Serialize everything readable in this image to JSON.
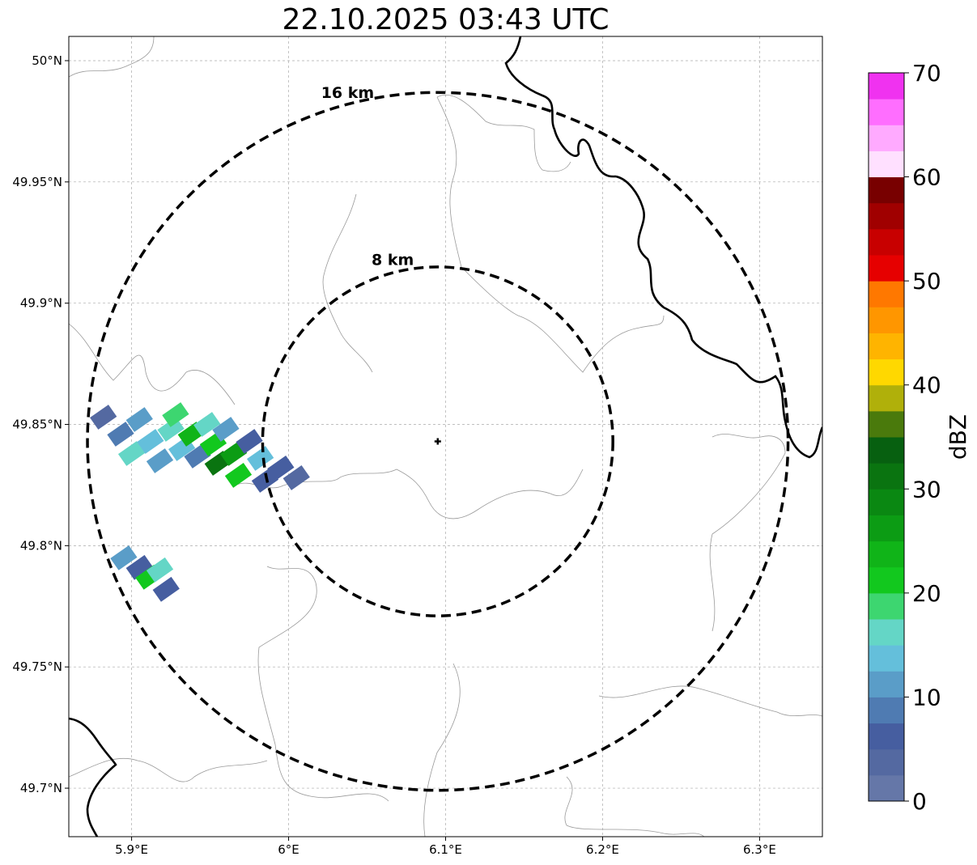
{
  "title": "22.10.2025 03:43 UTC",
  "map": {
    "lon_range": [
      5.86,
      6.34
    ],
    "lat_range": [
      49.68,
      50.01
    ],
    "lon_ticks": [
      5.9,
      6.0,
      6.1,
      6.2,
      6.3
    ],
    "lon_tick_labels": [
      "5.9°E",
      "6°E",
      "6.1°E",
      "6.2°E",
      "6.3°E"
    ],
    "lat_ticks": [
      49.7,
      49.75,
      49.8,
      49.85,
      49.9,
      49.95,
      50.0
    ],
    "lat_tick_labels": [
      "49.7°N",
      "49.75°N",
      "49.8°N",
      "49.85°N",
      "49.9°N",
      "49.95°N",
      "50°N"
    ],
    "gridlines": true,
    "radar_site": {
      "lon": 6.095,
      "lat": 49.843
    },
    "range_rings": [
      {
        "radius_km": 8,
        "label": "8 km"
      },
      {
        "radius_km": 16,
        "label": "16 km"
      }
    ]
  },
  "colorbar": {
    "label": "dBZ",
    "min": 0,
    "max": 70,
    "step": 2.5,
    "tick_values": [
      0,
      10,
      20,
      30,
      40,
      50,
      60,
      70
    ],
    "tick_labels": [
      "0",
      "10",
      "20",
      "30",
      "40",
      "50",
      "60",
      "70"
    ],
    "colors": [
      "#6577a8",
      "#5469a1",
      "#465ea0",
      "#4f7bb2",
      "#5a9dc8",
      "#64bfdb",
      "#64d6c6",
      "#3dd670",
      "#12c81e",
      "#10b418",
      "#0c9c14",
      "#0a8812",
      "#0a7410",
      "#076010",
      "#4a7a0c",
      "#b0b00a",
      "#ffd800",
      "#ffb400",
      "#ff9600",
      "#ff7800",
      "#e60000",
      "#c80000",
      "#a00000",
      "#780000",
      "#ffe0ff",
      "#ffaaff",
      "#ff6eff",
      "#f032f0"
    ]
  },
  "echoes": [
    {
      "lon": 5.882,
      "lat": 49.853,
      "dbz": 4
    },
    {
      "lon": 5.893,
      "lat": 49.846,
      "dbz": 8
    },
    {
      "lon": 5.905,
      "lat": 49.852,
      "dbz": 12
    },
    {
      "lon": 5.9,
      "lat": 49.838,
      "dbz": 16
    },
    {
      "lon": 5.912,
      "lat": 49.843,
      "dbz": 14
    },
    {
      "lon": 5.918,
      "lat": 49.835,
      "dbz": 10
    },
    {
      "lon": 5.925,
      "lat": 49.848,
      "dbz": 17
    },
    {
      "lon": 5.932,
      "lat": 49.84,
      "dbz": 13
    },
    {
      "lon": 5.928,
      "lat": 49.854,
      "dbz": 18
    },
    {
      "lon": 5.938,
      "lat": 49.846,
      "dbz": 24
    },
    {
      "lon": 5.942,
      "lat": 49.837,
      "dbz": 9
    },
    {
      "lon": 5.948,
      "lat": 49.85,
      "dbz": 15
    },
    {
      "lon": 5.952,
      "lat": 49.842,
      "dbz": 22
    },
    {
      "lon": 5.955,
      "lat": 49.834,
      "dbz": 30
    },
    {
      "lon": 5.96,
      "lat": 49.848,
      "dbz": 12
    },
    {
      "lon": 5.965,
      "lat": 49.838,
      "dbz": 27
    },
    {
      "lon": 5.968,
      "lat": 49.829,
      "dbz": 22
    },
    {
      "lon": 5.975,
      "lat": 49.843,
      "dbz": 7
    },
    {
      "lon": 5.982,
      "lat": 49.836,
      "dbz": 13
    },
    {
      "lon": 5.985,
      "lat": 49.827,
      "dbz": 5
    },
    {
      "lon": 5.995,
      "lat": 49.832,
      "dbz": 6
    },
    {
      "lon": 6.005,
      "lat": 49.828,
      "dbz": 4
    },
    {
      "lon": 5.895,
      "lat": 49.795,
      "dbz": 12
    },
    {
      "lon": 5.905,
      "lat": 49.791,
      "dbz": 5
    },
    {
      "lon": 5.911,
      "lat": 49.787,
      "dbz": 22
    },
    {
      "lon": 5.918,
      "lat": 49.79,
      "dbz": 15
    },
    {
      "lon": 5.922,
      "lat": 49.782,
      "dbz": 5
    }
  ]
}
